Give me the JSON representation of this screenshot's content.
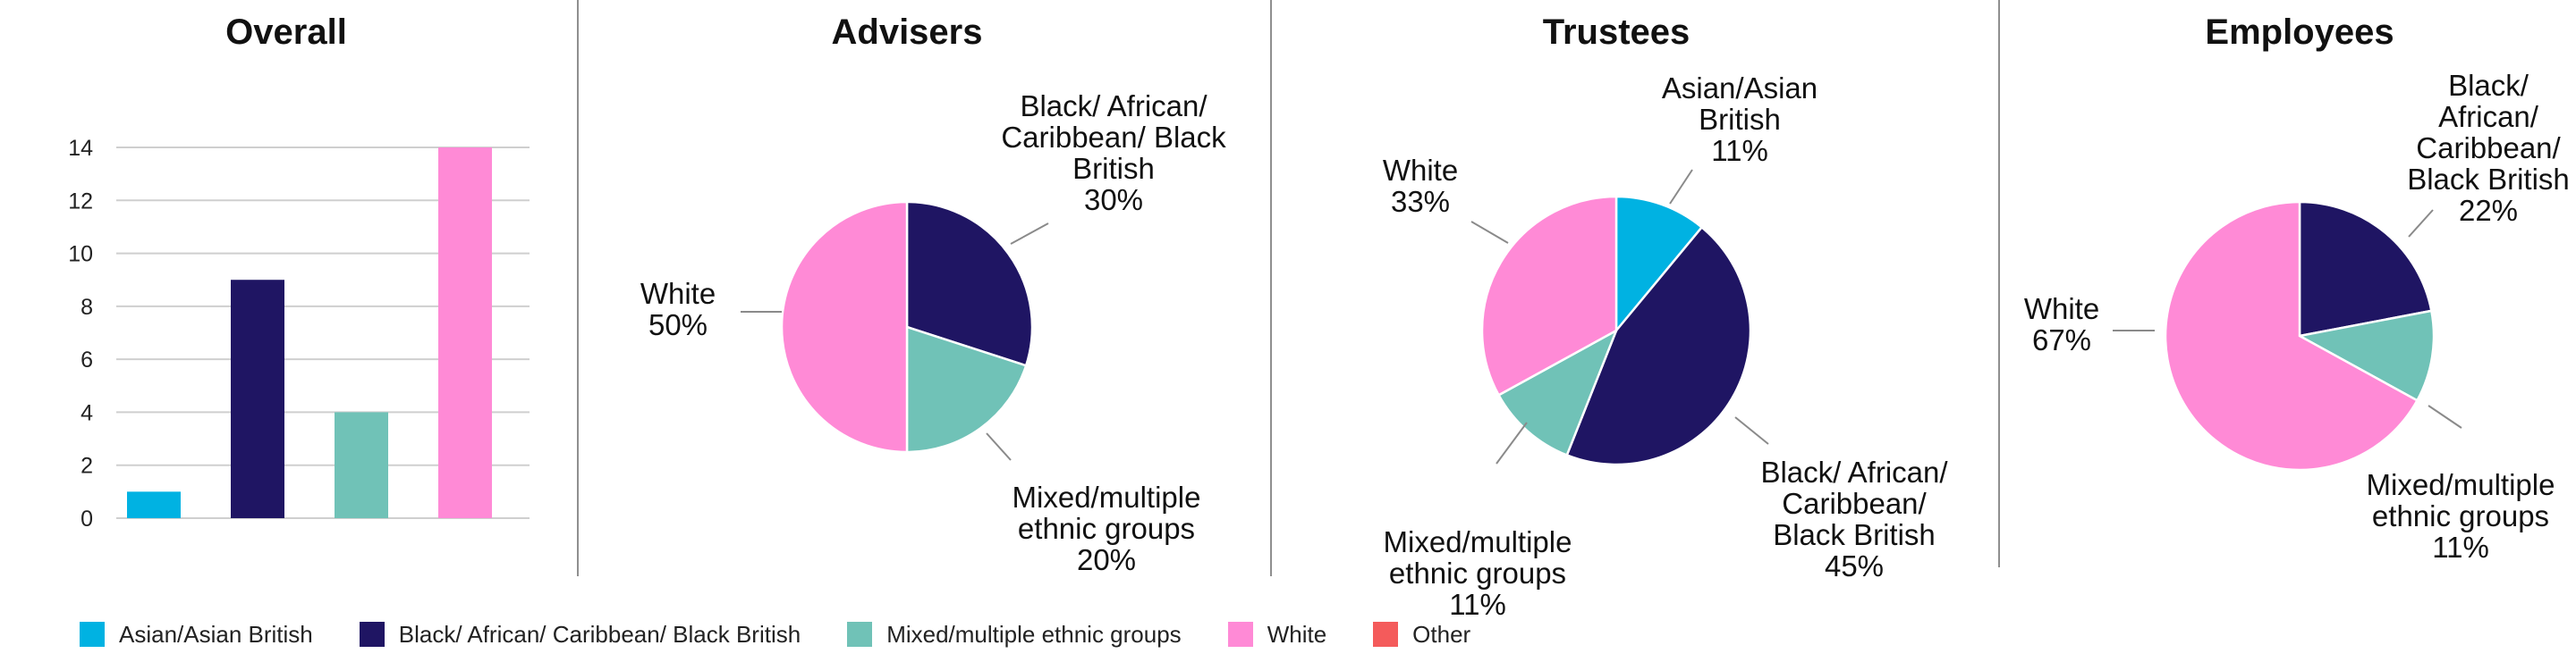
{
  "colors": {
    "asian": "#00b2e2",
    "black": "#1f1563",
    "mixed": "#70c2b7",
    "white": "#ff8ad6",
    "other": "#f45b5b"
  },
  "legend": [
    {
      "label": "Asian/Asian British",
      "color": "#00b2e2"
    },
    {
      "label": "Black/ African/ Caribbean/ Black British",
      "color": "#1f1563"
    },
    {
      "label": "Mixed/multiple ethnic groups",
      "color": "#70c2b7"
    },
    {
      "label": "White",
      "color": "#ff8ad6"
    },
    {
      "label": "Other",
      "color": "#f45b5b"
    }
  ],
  "chart_data": [
    {
      "type": "bar",
      "title": "Overall",
      "categories": [
        "Asian/Asian British",
        "Black/ African/ Caribbean/ Black British",
        "Mixed/multiple ethnic groups",
        "White"
      ],
      "values": [
        1,
        9,
        4,
        14
      ],
      "ylim": [
        0,
        14
      ],
      "yticks": [
        0,
        2,
        4,
        6,
        8,
        10,
        12,
        14
      ],
      "grid": true
    },
    {
      "type": "pie",
      "title": "Advisers",
      "slices": [
        {
          "category": "Black/ African/ Caribbean/ Black British",
          "value": 30,
          "label_lines": [
            "Black/ African/",
            "Caribbean/ Black",
            "British",
            "30%"
          ]
        },
        {
          "category": "Mixed/multiple ethnic groups",
          "value": 20,
          "label_lines": [
            "Mixed/multiple",
            "ethnic groups",
            "20%"
          ]
        },
        {
          "category": "White",
          "value": 50,
          "label_lines": [
            "White",
            "50%"
          ]
        }
      ]
    },
    {
      "type": "pie",
      "title": "Trustees",
      "slices": [
        {
          "category": "Asian/Asian British",
          "value": 11,
          "label_lines": [
            "Asian/Asian",
            "British",
            "11%"
          ]
        },
        {
          "category": "Black/ African/ Caribbean/ Black British",
          "value": 45,
          "label_lines": [
            "Black/ African/",
            "Caribbean/",
            "Black British",
            "45%"
          ]
        },
        {
          "category": "Mixed/multiple ethnic groups",
          "value": 11,
          "label_lines": [
            "Mixed/multiple",
            "ethnic groups",
            "11%"
          ]
        },
        {
          "category": "White",
          "value": 33,
          "label_lines": [
            "White",
            "33%"
          ]
        }
      ]
    },
    {
      "type": "pie",
      "title": "Employees",
      "slices": [
        {
          "category": "Black/ African/ Caribbean/ Black British",
          "value": 22,
          "label_lines": [
            "Black/",
            "African/",
            "Caribbean/",
            "Black British",
            "22%"
          ]
        },
        {
          "category": "Mixed/multiple ethnic groups",
          "value": 11,
          "label_lines": [
            "Mixed/multiple",
            "ethnic groups",
            "11%"
          ]
        },
        {
          "category": "White",
          "value": 67,
          "label_lines": [
            "White",
            "67%"
          ]
        }
      ]
    }
  ]
}
